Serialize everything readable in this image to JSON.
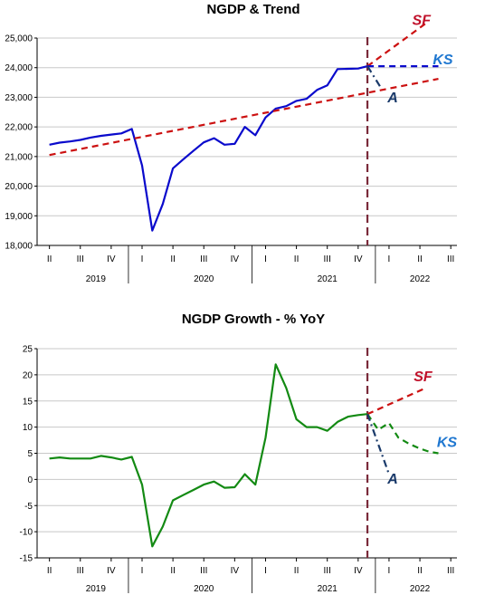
{
  "chart_data": [
    {
      "type": "line",
      "title": "NGDP & Trend",
      "xlabel": "",
      "ylabel": "",
      "x_quarter_labels": [
        "II",
        "III",
        "IV",
        "I",
        "II",
        "III",
        "IV",
        "I",
        "II",
        "III",
        "IV",
        "I",
        "II",
        "III"
      ],
      "x_year_labels": [
        {
          "label": "2019",
          "at": 1.5
        },
        {
          "label": "2020",
          "at": 5
        },
        {
          "label": "2021",
          "at": 9
        },
        {
          "label": "2022",
          "at": 12
        }
      ],
      "ylim": [
        18000,
        25000
      ],
      "yticks": [
        18000,
        19000,
        20000,
        21000,
        22000,
        23000,
        24000,
        25000
      ],
      "ytick_labels": [
        "18,000",
        "19,000",
        "20,000",
        "21,000",
        "22,000",
        "23,000",
        "24,000",
        "25,000"
      ],
      "vline_x": 10.3,
      "series": [
        {
          "name": "",
          "color": "#0a0acc",
          "style": "solid",
          "x": [
            0,
            0.33,
            0.67,
            1,
            1.33,
            1.67,
            2,
            2.33,
            2.67,
            3,
            3.33,
            3.67,
            4,
            4.33,
            4.67,
            5,
            5.33,
            5.67,
            6,
            6.33,
            6.67,
            7,
            7.33,
            7.67,
            8,
            8.33,
            8.67,
            9,
            9.33,
            9.67,
            10,
            10.3
          ],
          "y": [
            21400,
            21470,
            21510,
            21560,
            21640,
            21700,
            21740,
            21780,
            21930,
            20700,
            18500,
            19400,
            20600,
            20900,
            21200,
            21480,
            21620,
            21400,
            21430,
            22000,
            21720,
            22320,
            22620,
            22700,
            22880,
            22950,
            23250,
            23400,
            23950,
            23960,
            23970,
            24050
          ]
        },
        {
          "name": "",
          "color": "#cc1111",
          "style": "dash",
          "x": [
            0,
            12.6
          ],
          "y": [
            21050,
            23620
          ]
        },
        {
          "name": "SF",
          "color": "#cc1111",
          "style": "dash",
          "x": [
            10.3,
            12.2
          ],
          "y": [
            24050,
            25500
          ]
        },
        {
          "name": "KS",
          "color": "#0a0acc",
          "style": "dash",
          "x": [
            10.3,
            12.6
          ],
          "y": [
            24050,
            24050
          ]
        },
        {
          "name": "A",
          "color": "#1a3a6a",
          "style": "dashdot",
          "x": [
            10.3,
            10.75
          ],
          "y": [
            24050,
            23300
          ]
        }
      ],
      "annotations": [
        {
          "text": "SF",
          "color": "#c0102a",
          "x": 11.75,
          "y": 25450
        },
        {
          "text": "KS",
          "color": "#1f77d0",
          "x": 12.42,
          "y": 24120
        },
        {
          "text": "A",
          "color": "#1a3a6a",
          "x": 10.95,
          "y": 22830
        }
      ]
    },
    {
      "type": "line",
      "title": "NGDP Growth - % YoY",
      "xlabel": "",
      "ylabel": "",
      "x_quarter_labels": [
        "II",
        "III",
        "IV",
        "I",
        "II",
        "III",
        "IV",
        "I",
        "II",
        "III",
        "IV",
        "I",
        "II",
        "III"
      ],
      "x_year_labels": [
        {
          "label": "2019",
          "at": 1.5
        },
        {
          "label": "2020",
          "at": 5
        },
        {
          "label": "2021",
          "at": 9
        },
        {
          "label": "2022",
          "at": 12
        }
      ],
      "ylim": [
        -15,
        25
      ],
      "yticks": [
        -15,
        -10,
        -5,
        0,
        5,
        10,
        15,
        20,
        25
      ],
      "ytick_labels": [
        "-15",
        "-10",
        "-5",
        "0",
        "5",
        "10",
        "15",
        "20",
        "25"
      ],
      "vline_x": 10.3,
      "series": [
        {
          "name": "",
          "color": "#138a13",
          "style": "solid",
          "x": [
            0,
            0.33,
            0.67,
            1,
            1.33,
            1.67,
            2,
            2.33,
            2.67,
            3,
            3.33,
            3.67,
            4,
            4.33,
            4.67,
            5,
            5.33,
            5.67,
            6,
            6.33,
            6.67,
            7,
            7.33,
            7.67,
            8,
            8.33,
            8.67,
            9,
            9.33,
            9.67,
            10,
            10.3
          ],
          "y": [
            4,
            4.2,
            4,
            4,
            4,
            4.5,
            4.2,
            3.8,
            4.3,
            -1,
            -12.8,
            -9,
            -4,
            -3,
            -2,
            -1,
            -0.4,
            -1.6,
            -1.5,
            1,
            -1,
            8,
            22,
            17.5,
            11.5,
            10,
            10,
            9.3,
            11,
            12,
            12.3,
            12.5
          ]
        },
        {
          "name": "SF",
          "color": "#cc1111",
          "style": "dash",
          "x": [
            10.3,
            12.2
          ],
          "y": [
            12.5,
            17.5
          ]
        },
        {
          "name": "KS",
          "color": "#138a13",
          "style": "dash",
          "x": [
            10.3,
            10.65,
            11.0,
            11.3,
            11.65,
            12.0,
            12.3,
            12.6
          ],
          "y": [
            12.5,
            9.5,
            10.8,
            8.0,
            6.8,
            5.9,
            5.3,
            5.0
          ]
        },
        {
          "name": "A",
          "color": "#1a3a6a",
          "style": "dashdot",
          "x": [
            10.3,
            11.0
          ],
          "y": [
            12.5,
            1.0
          ]
        }
      ],
      "annotations": [
        {
          "text": "SF",
          "color": "#c0102a",
          "x": 11.8,
          "y": 18.8
        },
        {
          "text": "KS",
          "color": "#1f77d0",
          "x": 12.55,
          "y": 6.2
        },
        {
          "text": "A",
          "color": "#1a3a6a",
          "x": 10.95,
          "y": -0.8
        }
      ]
    }
  ]
}
